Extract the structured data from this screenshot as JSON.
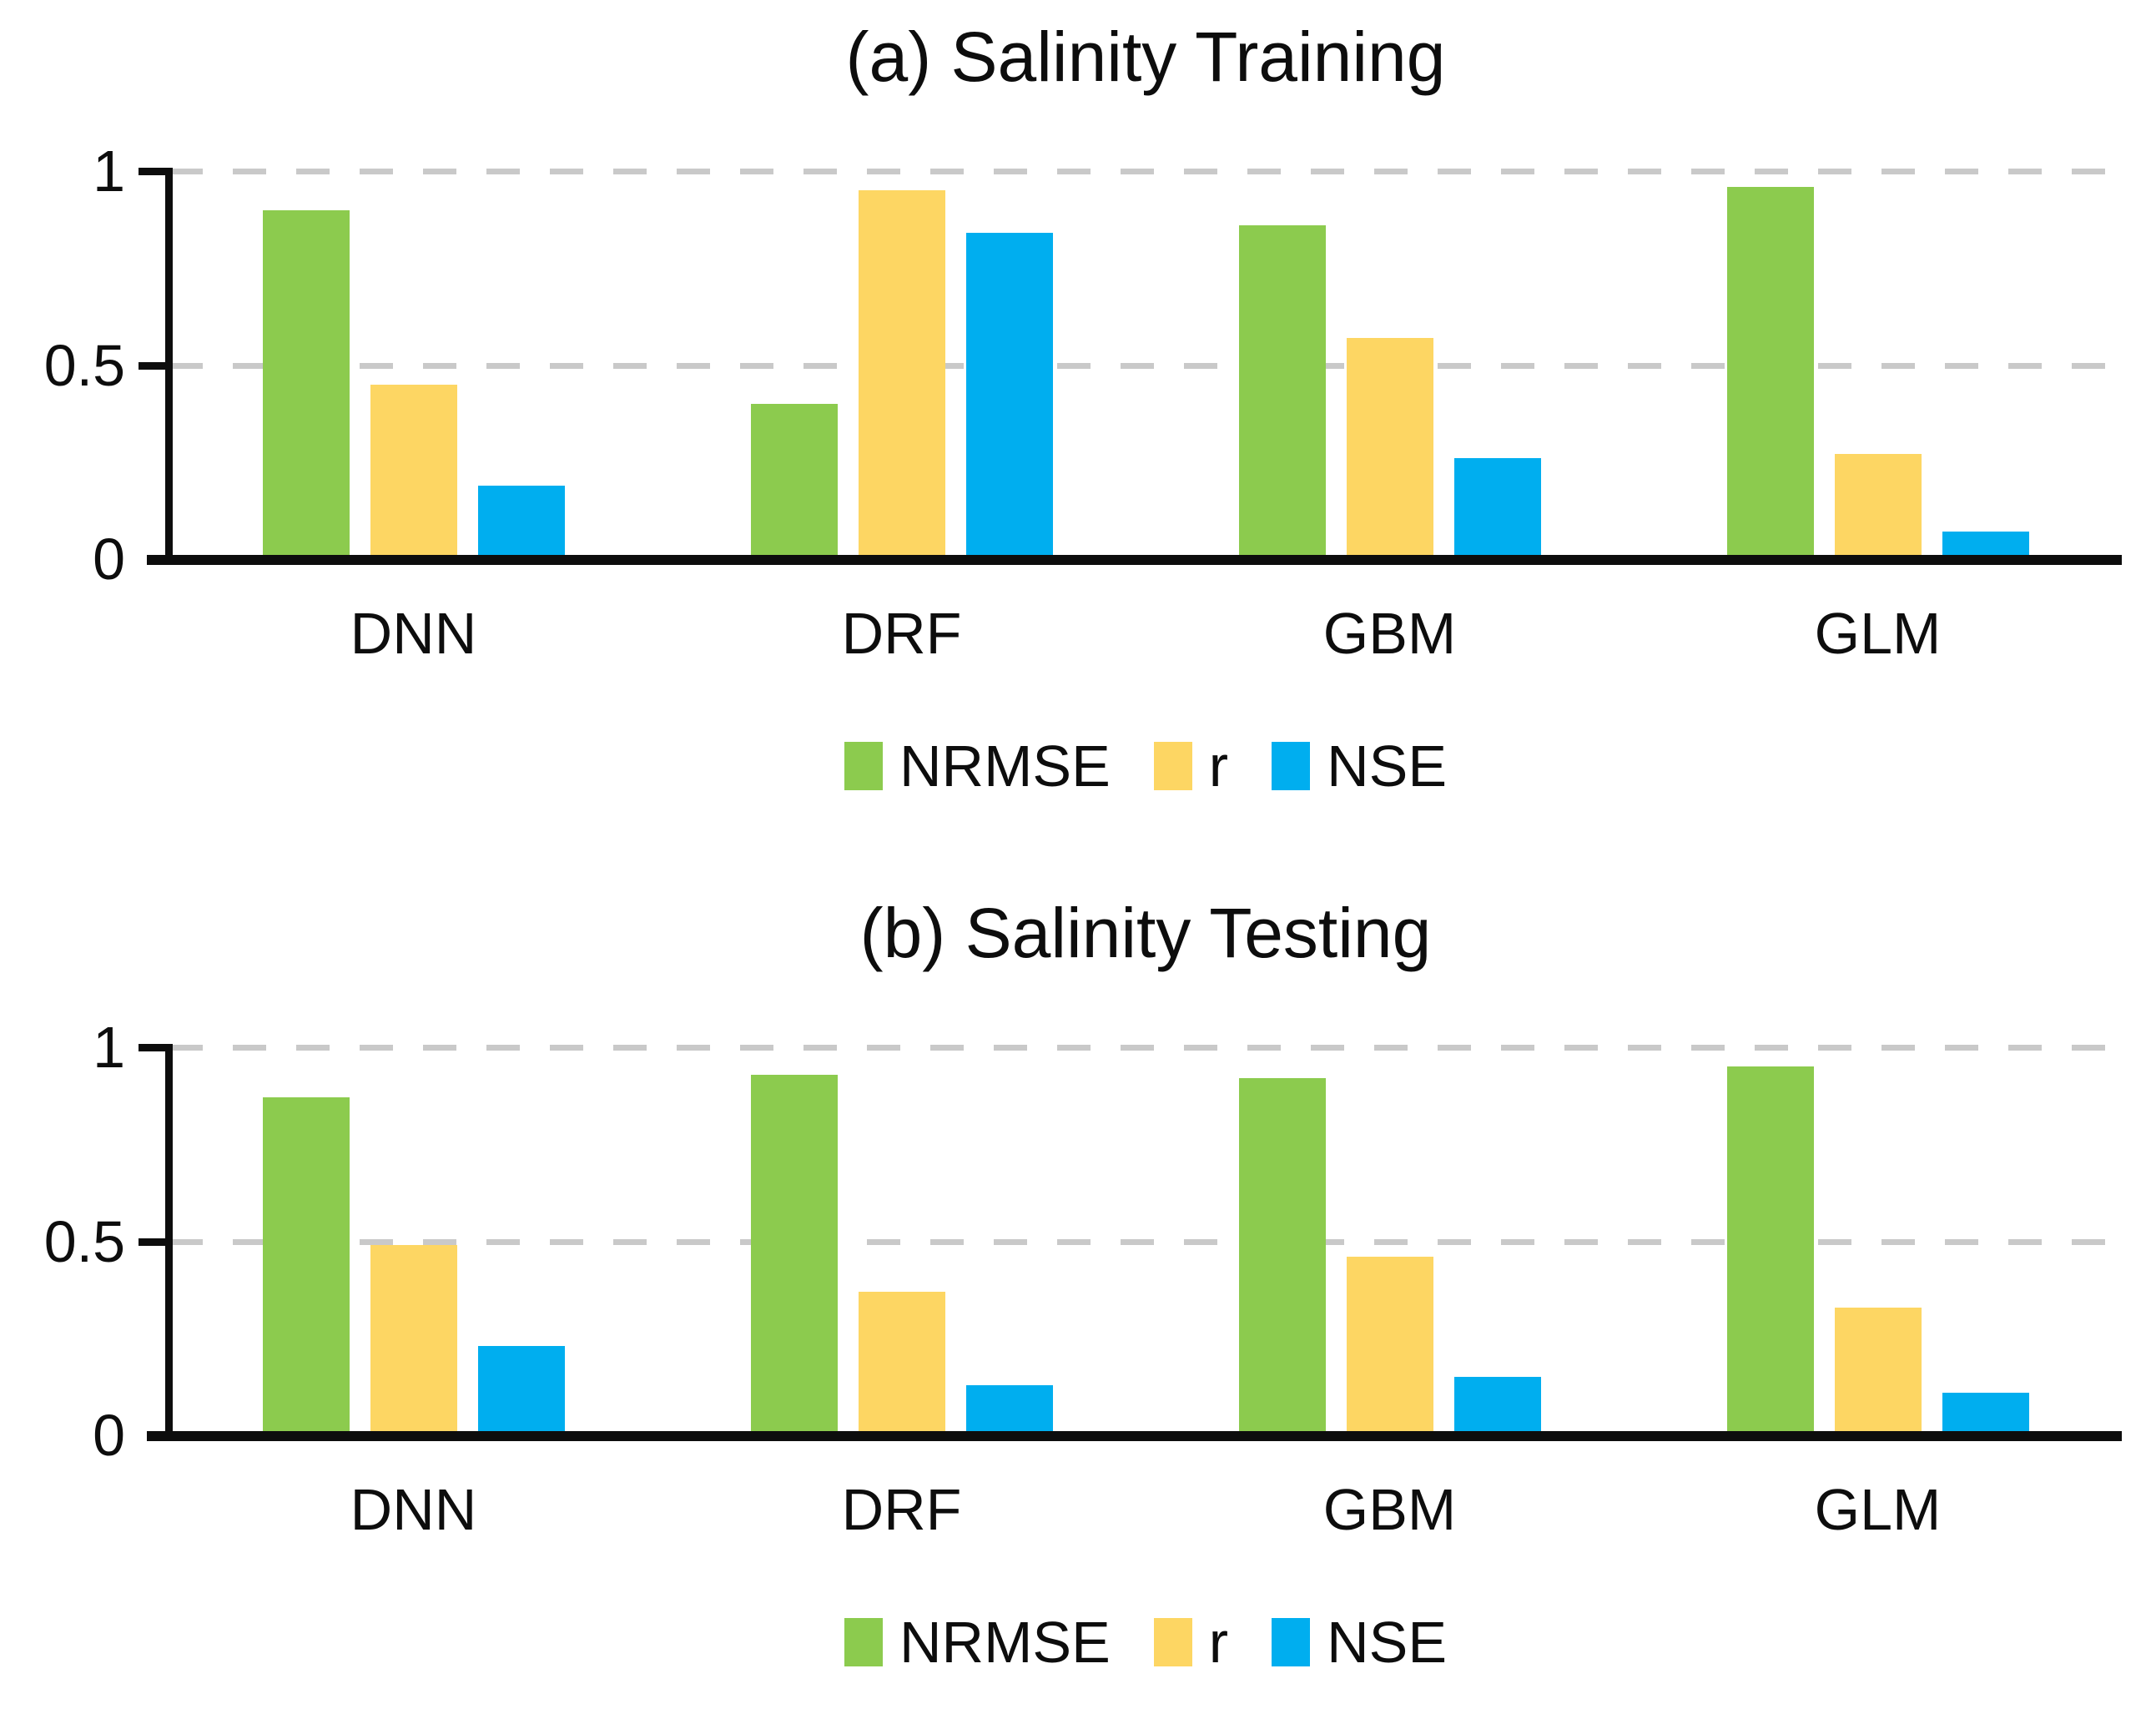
{
  "figure": {
    "background": "#ffffff",
    "axis_color": "#0d0d0d",
    "gridline_color": "#c9c9c9"
  },
  "chart_data": [
    {
      "type": "bar",
      "title": "(a) Salinity Training",
      "categories": [
        "DNN",
        "DRF",
        "GBM",
        "GLM"
      ],
      "series": [
        {
          "name": "NRMSE",
          "color": "#8CCB4E",
          "values": [
            0.9,
            0.4,
            0.86,
            0.96
          ]
        },
        {
          "name": "r",
          "color": "#FDD663",
          "values": [
            0.45,
            0.95,
            0.57,
            0.27
          ]
        },
        {
          "name": "NSE",
          "color": "#00AEEF",
          "values": [
            0.19,
            0.84,
            0.26,
            0.07
          ]
        }
      ],
      "xlabel": "",
      "ylabel": "",
      "ylim": [
        0,
        1
      ],
      "yticks": [
        {
          "value": 0,
          "label": "0"
        },
        {
          "value": 0.5,
          "label": "0.5"
        },
        {
          "value": 1,
          "label": "1"
        }
      ],
      "grid": "horizontal-dashed",
      "legend_position": "bottom"
    },
    {
      "type": "bar",
      "title": "(b) Salinity Testing",
      "categories": [
        "DNN",
        "DRF",
        "GBM",
        "GLM"
      ],
      "series": [
        {
          "name": "NRMSE",
          "color": "#8CCB4E",
          "values": [
            0.87,
            0.93,
            0.92,
            0.95
          ]
        },
        {
          "name": "r",
          "color": "#FDD663",
          "values": [
            0.49,
            0.37,
            0.46,
            0.33
          ]
        },
        {
          "name": "NSE",
          "color": "#00AEEF",
          "values": [
            0.23,
            0.13,
            0.15,
            0.11
          ]
        }
      ],
      "xlabel": "",
      "ylabel": "",
      "ylim": [
        0,
        1
      ],
      "yticks": [
        {
          "value": 0,
          "label": "0"
        },
        {
          "value": 0.5,
          "label": "0.5"
        },
        {
          "value": 1,
          "label": "1"
        }
      ],
      "grid": "horizontal-dashed",
      "legend_position": "bottom"
    }
  ]
}
